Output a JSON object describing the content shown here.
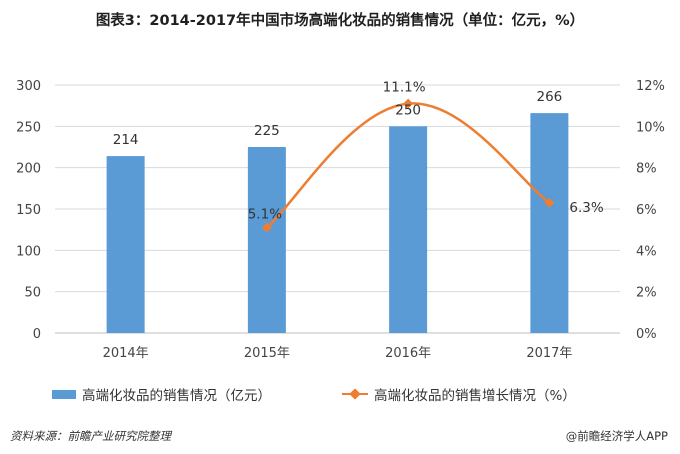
{
  "title": "图表3：2014-2017年中国市场高端化妆品的销售情况（单位：亿元，%）",
  "source": "资料来源：前瞻产业研究院整理",
  "brand": "@前瞻经济学人APP",
  "colors": {
    "bar": "#5b9bd5",
    "line": "#ed7d31",
    "grid": "#d9d9d9"
  },
  "chart_data": {
    "type": "bar",
    "categories": [
      "2014年",
      "2015年",
      "2016年",
      "2017年"
    ],
    "series": [
      {
        "name": "高端化妆品的销售情况（亿元）",
        "type": "bar",
        "axis": "left",
        "values": [
          214,
          225,
          250,
          266
        ],
        "labels": [
          "214",
          "225",
          "250",
          "266"
        ]
      },
      {
        "name": "高端化妆品的销售增长情况（%）",
        "type": "line",
        "axis": "right",
        "values": [
          null,
          5.1,
          11.1,
          6.3
        ],
        "labels": [
          "",
          "5.1%",
          "11.1%",
          "6.3%"
        ]
      }
    ],
    "y_left": {
      "min": 0,
      "max": 300,
      "ticks": [
        "0",
        "50",
        "100",
        "150",
        "200",
        "250",
        "300"
      ]
    },
    "y_right": {
      "min": 0,
      "max": 12,
      "ticks": [
        "0%",
        "2%",
        "4%",
        "6%",
        "8%",
        "10%",
        "12%"
      ]
    },
    "grid": true,
    "legend": "bottom"
  }
}
